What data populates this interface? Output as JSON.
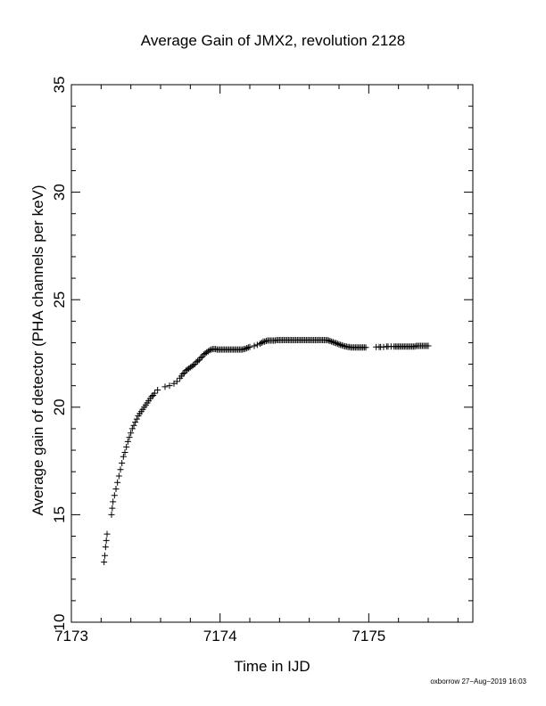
{
  "chart_data": {
    "type": "scatter",
    "title": "Average Gain of JMX2, revolution 2128",
    "xlabel": "Time in IJD",
    "ylabel": "Average gain of detector (PHA channels per keV)",
    "xlim": [
      7173.0,
      7175.7
    ],
    "ylim": [
      10,
      35
    ],
    "xticks": [
      7173,
      7174,
      7175
    ],
    "yticks": [
      10,
      15,
      20,
      25,
      30,
      35
    ],
    "x_tick_labels": [
      "7173",
      "7174",
      "7175"
    ],
    "y_tick_labels": [
      "10",
      "15",
      "20",
      "25",
      "30",
      "35"
    ],
    "marker": "+",
    "marker_color": "#000000",
    "grid": false,
    "series": [
      {
        "points": [
          [
            7173.22,
            12.8
          ],
          [
            7173.225,
            13.1
          ],
          [
            7173.23,
            13.5
          ],
          [
            7173.235,
            13.8
          ],
          [
            7173.24,
            14.1
          ],
          [
            7173.27,
            15.0
          ],
          [
            7173.275,
            15.3
          ],
          [
            7173.28,
            15.6
          ],
          [
            7173.29,
            15.9
          ],
          [
            7173.3,
            16.2
          ],
          [
            7173.31,
            16.5
          ],
          [
            7173.32,
            16.8
          ],
          [
            7173.33,
            17.1
          ],
          [
            7173.34,
            17.4
          ],
          [
            7173.35,
            17.7
          ],
          [
            7173.36,
            17.9
          ],
          [
            7173.37,
            18.15
          ],
          [
            7173.38,
            18.4
          ],
          [
            7173.39,
            18.6
          ],
          [
            7173.4,
            18.8
          ],
          [
            7173.41,
            19.0
          ],
          [
            7173.42,
            19.15
          ],
          [
            7173.43,
            19.3
          ],
          [
            7173.44,
            19.45
          ],
          [
            7173.45,
            19.6
          ],
          [
            7173.46,
            19.7
          ],
          [
            7173.47,
            19.8
          ],
          [
            7173.48,
            19.9
          ],
          [
            7173.49,
            20.0
          ],
          [
            7173.5,
            20.1
          ],
          [
            7173.51,
            20.2
          ],
          [
            7173.52,
            20.3
          ],
          [
            7173.53,
            20.4
          ],
          [
            7173.54,
            20.5
          ],
          [
            7173.55,
            20.55
          ],
          [
            7173.56,
            20.65
          ],
          [
            7173.58,
            20.8
          ],
          [
            7173.63,
            20.95
          ],
          [
            7173.66,
            21.0
          ],
          [
            7173.69,
            21.1
          ],
          [
            7173.71,
            21.2
          ],
          [
            7173.73,
            21.35
          ],
          [
            7173.74,
            21.45
          ],
          [
            7173.75,
            21.55
          ],
          [
            7173.76,
            21.6
          ],
          [
            7173.77,
            21.7
          ],
          [
            7173.78,
            21.75
          ],
          [
            7173.79,
            21.8
          ],
          [
            7173.8,
            21.85
          ],
          [
            7173.81,
            21.9
          ],
          [
            7173.82,
            21.95
          ],
          [
            7173.83,
            22.0
          ],
          [
            7173.84,
            22.1
          ],
          [
            7173.85,
            22.15
          ],
          [
            7173.86,
            22.2
          ],
          [
            7173.87,
            22.3
          ],
          [
            7173.88,
            22.35
          ],
          [
            7173.89,
            22.45
          ],
          [
            7173.9,
            22.5
          ],
          [
            7173.91,
            22.55
          ],
          [
            7173.92,
            22.6
          ],
          [
            7173.93,
            22.65
          ],
          [
            7173.94,
            22.68
          ],
          [
            7173.95,
            22.7
          ],
          [
            7173.96,
            22.7
          ],
          [
            7173.97,
            22.7
          ],
          [
            7173.98,
            22.68
          ],
          [
            7173.99,
            22.68
          ],
          [
            7174.0,
            22.68
          ],
          [
            7174.01,
            22.68
          ],
          [
            7174.02,
            22.68
          ],
          [
            7174.03,
            22.68
          ],
          [
            7174.04,
            22.68
          ],
          [
            7174.05,
            22.68
          ],
          [
            7174.06,
            22.68
          ],
          [
            7174.07,
            22.68
          ],
          [
            7174.08,
            22.68
          ],
          [
            7174.09,
            22.68
          ],
          [
            7174.1,
            22.68
          ],
          [
            7174.11,
            22.68
          ],
          [
            7174.12,
            22.68
          ],
          [
            7174.13,
            22.68
          ],
          [
            7174.14,
            22.68
          ],
          [
            7174.15,
            22.68
          ],
          [
            7174.16,
            22.7
          ],
          [
            7174.17,
            22.72
          ],
          [
            7174.18,
            22.75
          ],
          [
            7174.19,
            22.78
          ],
          [
            7174.2,
            22.8
          ],
          [
            7174.23,
            22.85
          ],
          [
            7174.25,
            22.9
          ],
          [
            7174.27,
            22.95
          ],
          [
            7174.28,
            23.0
          ],
          [
            7174.29,
            23.05
          ],
          [
            7174.3,
            23.05
          ],
          [
            7174.31,
            23.08
          ],
          [
            7174.32,
            23.1
          ],
          [
            7174.33,
            23.1
          ],
          [
            7174.34,
            23.1
          ],
          [
            7174.35,
            23.1
          ],
          [
            7174.36,
            23.1
          ],
          [
            7174.37,
            23.1
          ],
          [
            7174.38,
            23.12
          ],
          [
            7174.39,
            23.12
          ],
          [
            7174.4,
            23.12
          ],
          [
            7174.41,
            23.12
          ],
          [
            7174.42,
            23.12
          ],
          [
            7174.43,
            23.12
          ],
          [
            7174.44,
            23.12
          ],
          [
            7174.45,
            23.12
          ],
          [
            7174.46,
            23.12
          ],
          [
            7174.47,
            23.12
          ],
          [
            7174.48,
            23.12
          ],
          [
            7174.49,
            23.12
          ],
          [
            7174.5,
            23.12
          ],
          [
            7174.51,
            23.12
          ],
          [
            7174.52,
            23.12
          ],
          [
            7174.53,
            23.12
          ],
          [
            7174.54,
            23.12
          ],
          [
            7174.55,
            23.12
          ],
          [
            7174.56,
            23.12
          ],
          [
            7174.57,
            23.12
          ],
          [
            7174.58,
            23.12
          ],
          [
            7174.59,
            23.12
          ],
          [
            7174.6,
            23.12
          ],
          [
            7174.61,
            23.12
          ],
          [
            7174.62,
            23.12
          ],
          [
            7174.63,
            23.12
          ],
          [
            7174.64,
            23.12
          ],
          [
            7174.65,
            23.12
          ],
          [
            7174.66,
            23.12
          ],
          [
            7174.67,
            23.12
          ],
          [
            7174.68,
            23.12
          ],
          [
            7174.69,
            23.12
          ],
          [
            7174.7,
            23.12
          ],
          [
            7174.71,
            23.12
          ],
          [
            7174.72,
            23.12
          ],
          [
            7174.73,
            23.1
          ],
          [
            7174.74,
            23.08
          ],
          [
            7174.75,
            23.05
          ],
          [
            7174.76,
            23.03
          ],
          [
            7174.77,
            23.0
          ],
          [
            7174.78,
            22.98
          ],
          [
            7174.79,
            22.95
          ],
          [
            7174.8,
            22.92
          ],
          [
            7174.81,
            22.9
          ],
          [
            7174.82,
            22.88
          ],
          [
            7174.83,
            22.85
          ],
          [
            7174.84,
            22.83
          ],
          [
            7174.85,
            22.82
          ],
          [
            7174.86,
            22.8
          ],
          [
            7174.87,
            22.8
          ],
          [
            7174.88,
            22.78
          ],
          [
            7174.89,
            22.78
          ],
          [
            7174.9,
            22.78
          ],
          [
            7174.91,
            22.78
          ],
          [
            7174.92,
            22.78
          ],
          [
            7174.93,
            22.78
          ],
          [
            7174.94,
            22.78
          ],
          [
            7174.95,
            22.78
          ],
          [
            7174.96,
            22.78
          ],
          [
            7174.97,
            22.78
          ],
          [
            7174.98,
            22.78
          ],
          [
            7175.05,
            22.8
          ],
          [
            7175.07,
            22.8
          ],
          [
            7175.08,
            22.8
          ],
          [
            7175.1,
            22.8
          ],
          [
            7175.12,
            22.82
          ],
          [
            7175.13,
            22.82
          ],
          [
            7175.15,
            22.82
          ],
          [
            7175.17,
            22.82
          ],
          [
            7175.18,
            22.82
          ],
          [
            7175.19,
            22.82
          ],
          [
            7175.2,
            22.82
          ],
          [
            7175.21,
            22.82
          ],
          [
            7175.22,
            22.82
          ],
          [
            7175.23,
            22.82
          ],
          [
            7175.24,
            22.82
          ],
          [
            7175.25,
            22.82
          ],
          [
            7175.26,
            22.82
          ],
          [
            7175.27,
            22.82
          ],
          [
            7175.28,
            22.82
          ],
          [
            7175.29,
            22.82
          ],
          [
            7175.3,
            22.82
          ],
          [
            7175.31,
            22.82
          ],
          [
            7175.32,
            22.85
          ],
          [
            7175.33,
            22.85
          ],
          [
            7175.34,
            22.85
          ],
          [
            7175.35,
            22.85
          ],
          [
            7175.36,
            22.85
          ],
          [
            7175.37,
            22.85
          ],
          [
            7175.38,
            22.85
          ],
          [
            7175.39,
            22.85
          ],
          [
            7175.4,
            22.85
          ]
        ]
      }
    ]
  },
  "footer": {
    "stamp": "oxborrow 27−Aug−2019 16:03"
  }
}
